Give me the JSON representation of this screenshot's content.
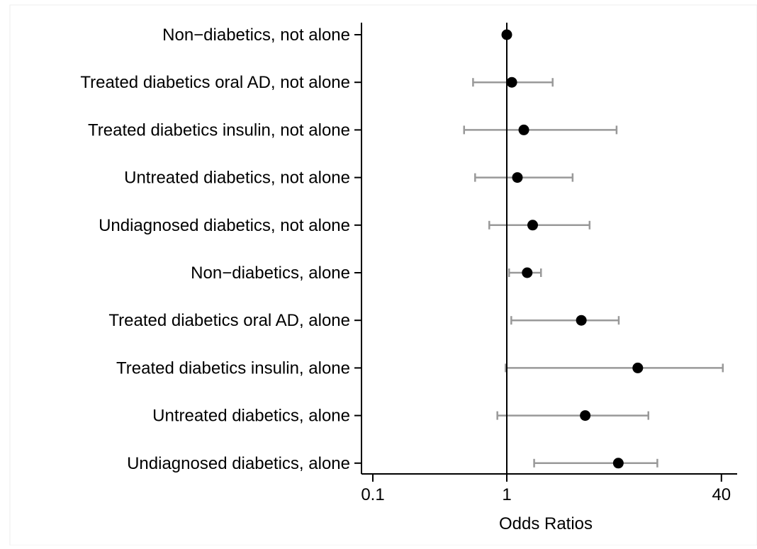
{
  "chart_data": {
    "type": "forest",
    "title": "",
    "xlabel": "Odds Ratios",
    "ylabel": "",
    "x_scale": "log",
    "xlim": [
      0.1,
      55
    ],
    "xticks": [
      {
        "value": 0.1,
        "label": "0.1"
      },
      {
        "value": 1,
        "label": "1"
      },
      {
        "value": 40,
        "label": "40"
      }
    ],
    "reference_line": 1,
    "grid": false,
    "categories": [
      "Non−diabetics, not alone",
      "Treated diabetics oral AD, not alone",
      "Treated diabetics insulin, not alone",
      "Untreated diabetics, not alone",
      "Undiagnosed diabetics, not alone",
      "Non−diabetics, alone",
      "Treated diabetics oral AD, alone",
      "Treated diabetics insulin, alone",
      "Untreated diabetics, alone",
      "Undiagnosed diabetics, alone"
    ],
    "series": [
      {
        "estimates": [
          1.0,
          1.09,
          1.34,
          1.2,
          1.56,
          1.42,
          3.6,
          9.5,
          3.85,
          6.8
        ],
        "ci_low": [
          null,
          0.56,
          0.48,
          0.58,
          0.74,
          1.04,
          1.08,
          0.98,
          0.85,
          1.6
        ],
        "ci_high": [
          null,
          2.2,
          6.6,
          3.1,
          4.15,
          1.8,
          6.85,
          41,
          11.4,
          13.3
        ]
      }
    ],
    "colors": {
      "point": "#000000",
      "ci": "#999999",
      "axis": "#000000",
      "reference": "#000000"
    }
  }
}
